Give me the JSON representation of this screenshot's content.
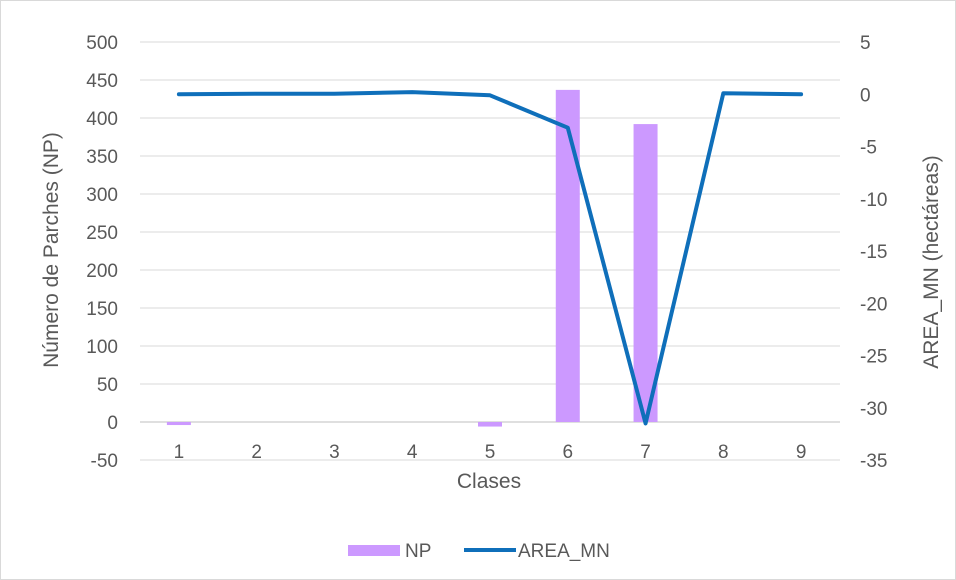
{
  "chart_data": {
    "type": "bar+line",
    "title": "",
    "xlabel": "Clases",
    "ylabel": "Número de Parches (NP)",
    "y2label": "AREA_MN (hectáreas)",
    "categories": [
      "1",
      "2",
      "3",
      "4",
      "5",
      "6",
      "7",
      "8",
      "9"
    ],
    "ylim": [
      -50,
      500
    ],
    "y2lim": [
      -35,
      5
    ],
    "yticks": [
      "-50",
      "0",
      "50",
      "100",
      "150",
      "200",
      "250",
      "300",
      "350",
      "400",
      "450",
      "500"
    ],
    "y2ticks": [
      "-35",
      "-30",
      "-25",
      "-20",
      "-15",
      "-10",
      "-5",
      "0",
      "5"
    ],
    "grid": true,
    "legend_position": "bottom",
    "series": [
      {
        "name": "NP",
        "kind": "bar",
        "axis": "left",
        "color": "#cc99ff",
        "values": [
          -4,
          0,
          0,
          0,
          -6,
          437,
          392,
          0,
          0
        ]
      },
      {
        "name": "AREA_MN",
        "kind": "line",
        "axis": "right",
        "color": "#0f6fba",
        "values": [
          0.0,
          0.05,
          0.05,
          0.2,
          -0.1,
          -3.2,
          -31.5,
          0.1,
          0.0
        ]
      }
    ]
  }
}
